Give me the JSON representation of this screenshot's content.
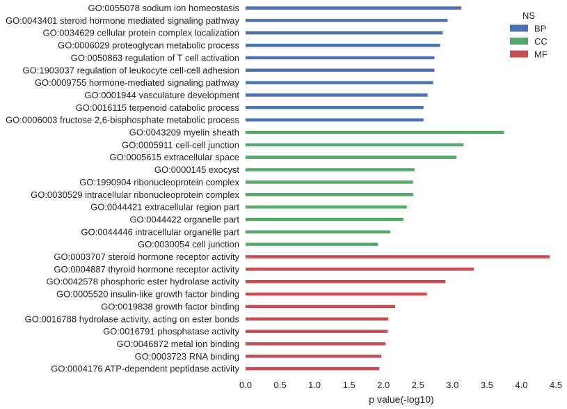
{
  "chart_data": {
    "type": "bar",
    "orientation": "horizontal",
    "xlabel": "p value(-log10)",
    "ylabel": "",
    "xlim": [
      0,
      4.5
    ],
    "xticks": [
      "0.0",
      "0.5",
      "1.0",
      "1.5",
      "2.0",
      "2.5",
      "3.0",
      "3.5",
      "4.0",
      "4.5"
    ],
    "grid": false,
    "legend": {
      "title": "NS",
      "placement": "top-right"
    },
    "series": [
      {
        "name": "BP",
        "color": "#4c72b0"
      },
      {
        "name": "CC",
        "color": "#55a868"
      },
      {
        "name": "MF",
        "color": "#c44e52"
      }
    ],
    "bars": [
      {
        "label": "GO:0055078 sodium ion homeostasis",
        "value": 3.13,
        "ns": "BP"
      },
      {
        "label": "GO:0043401 steroid hormone mediated signaling pathway",
        "value": 2.93,
        "ns": "BP"
      },
      {
        "label": "GO:0034629 cellular protein complex localization",
        "value": 2.86,
        "ns": "BP"
      },
      {
        "label": "GO:0006029 proteoglycan metabolic process",
        "value": 2.82,
        "ns": "BP"
      },
      {
        "label": "GO:0050863 regulation of T cell activation",
        "value": 2.74,
        "ns": "BP"
      },
      {
        "label": "GO:1903037 regulation of leukocyte cell-cell adhesion",
        "value": 2.74,
        "ns": "BP"
      },
      {
        "label": "GO:0009755 hormone-mediated signaling pathway",
        "value": 2.72,
        "ns": "BP"
      },
      {
        "label": "GO:0001944 vasculature development",
        "value": 2.64,
        "ns": "BP"
      },
      {
        "label": "GO:0016115 terpenoid catabolic process",
        "value": 2.58,
        "ns": "BP"
      },
      {
        "label": "GO:0006003 fructose 2,6-bisphosphate metabolic process",
        "value": 2.58,
        "ns": "BP"
      },
      {
        "label": "GO:0043209 myelin sheath",
        "value": 3.75,
        "ns": "CC"
      },
      {
        "label": "GO:0005911 cell-cell junction",
        "value": 3.16,
        "ns": "CC"
      },
      {
        "label": "GO:0005615 extracellular space",
        "value": 3.06,
        "ns": "CC"
      },
      {
        "label": "GO:0000145 exocyst",
        "value": 2.45,
        "ns": "CC"
      },
      {
        "label": "GO:1990904 ribonucleoprotein complex",
        "value": 2.43,
        "ns": "CC"
      },
      {
        "label": "GO:0030529 intracellular ribonucleoprotein complex",
        "value": 2.43,
        "ns": "CC"
      },
      {
        "label": "GO:0044421 extracellular region part",
        "value": 2.34,
        "ns": "CC"
      },
      {
        "label": "GO:0044422 organelle part",
        "value": 2.29,
        "ns": "CC"
      },
      {
        "label": "GO:0044446 intracellular organelle part",
        "value": 2.1,
        "ns": "CC"
      },
      {
        "label": "GO:0030054 cell junction",
        "value": 1.92,
        "ns": "CC"
      },
      {
        "label": "GO:0003707 steroid hormone receptor activity",
        "value": 4.41,
        "ns": "MF"
      },
      {
        "label": "GO:0004887 thyroid hormone receptor activity",
        "value": 3.31,
        "ns": "MF"
      },
      {
        "label": "GO:0042578 phosphoric ester hydrolase activity",
        "value": 2.9,
        "ns": "MF"
      },
      {
        "label": "GO:0005520 insulin-like growth factor binding",
        "value": 2.63,
        "ns": "MF"
      },
      {
        "label": "GO:0019838 growth factor binding",
        "value": 2.17,
        "ns": "MF"
      },
      {
        "label": "GO:0016788 hydrolase activity, acting on ester bonds",
        "value": 2.07,
        "ns": "MF"
      },
      {
        "label": "GO:0016791 phosphatase activity",
        "value": 2.06,
        "ns": "MF"
      },
      {
        "label": "GO:0046872 metal ion binding",
        "value": 2.03,
        "ns": "MF"
      },
      {
        "label": "GO:0003723 RNA binding",
        "value": 1.97,
        "ns": "MF"
      },
      {
        "label": "GO:0004176 ATP-dependent peptidase activity",
        "value": 1.94,
        "ns": "MF"
      }
    ]
  }
}
